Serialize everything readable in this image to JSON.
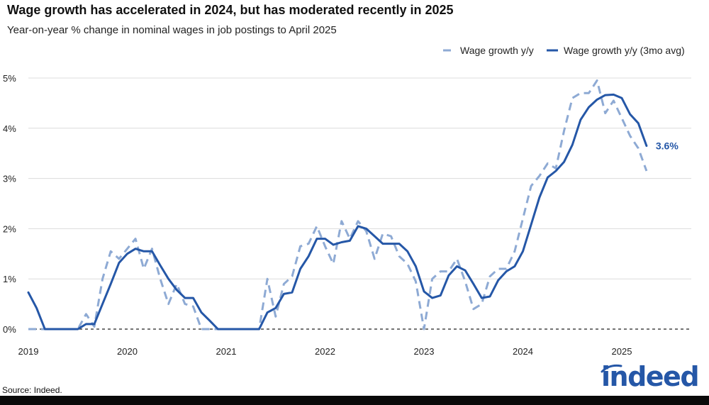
{
  "chart_data": {
    "type": "line",
    "title": "Wage growth has accelerated in 2024, but has moderated recently in 2025",
    "subtitle": "Year-on-year % change in nominal wages in job postings to April 2025",
    "xlabel": "",
    "ylabel": "",
    "ylim": [
      0,
      5
    ],
    "yticks": [
      0,
      1,
      2,
      3,
      4,
      5
    ],
    "ytick_labels": [
      "0%",
      "1%",
      "2%",
      "3%",
      "4%",
      "5%"
    ],
    "xlim": [
      2019.0,
      2025.75
    ],
    "xticks": [
      2019,
      2020,
      2021,
      2022,
      2023,
      2024,
      2025
    ],
    "xtick_labels": [
      "2019",
      "2020",
      "2021",
      "2022",
      "2023",
      "2024",
      "2025"
    ],
    "grid": true,
    "legend_position": "top-right",
    "end_label": "3.6%",
    "series": [
      {
        "name": "Wage growth y/y",
        "style": "dashed",
        "color": "#8eaad4",
        "x": [
          2019.0,
          2019.0833,
          2019.1667,
          2019.25,
          2019.3333,
          2019.4167,
          2019.5,
          2019.5833,
          2019.6667,
          2019.75,
          2019.8333,
          2019.9167,
          2020.0,
          2020.0833,
          2020.1667,
          2020.25,
          2020.3333,
          2020.4167,
          2020.5,
          2020.5833,
          2020.6667,
          2020.75,
          2020.8333,
          2020.9167,
          2021.0,
          2021.0833,
          2021.1667,
          2021.25,
          2021.3333,
          2021.4167,
          2021.5,
          2021.5833,
          2021.6667,
          2021.75,
          2021.8333,
          2021.9167,
          2022.0,
          2022.0833,
          2022.1667,
          2022.25,
          2022.3333,
          2022.4167,
          2022.5,
          2022.5833,
          2022.6667,
          2022.75,
          2022.8333,
          2022.9167,
          2023.0,
          2023.0833,
          2023.1667,
          2023.25,
          2023.3333,
          2023.4167,
          2023.5,
          2023.5833,
          2023.6667,
          2023.75,
          2023.8333,
          2023.9167,
          2024.0,
          2024.0833,
          2024.1667,
          2024.25,
          2024.3333,
          2024.4167,
          2024.5,
          2024.5833,
          2024.6667,
          2024.75,
          2024.8333,
          2024.9167,
          2025.0,
          2025.0833,
          2025.1667,
          2025.25
        ],
        "values": [
          0.0,
          0.0,
          0.0,
          0.0,
          0.0,
          0.0,
          0.0,
          0.3,
          0.05,
          1.0,
          1.55,
          1.4,
          1.6,
          1.8,
          1.2,
          1.6,
          1.0,
          0.5,
          0.9,
          0.5,
          0.45,
          0.0,
          0.0,
          0.0,
          0.0,
          0.0,
          0.0,
          0.0,
          0.0,
          1.0,
          0.25,
          0.9,
          1.05,
          1.65,
          1.7,
          2.05,
          1.65,
          1.3,
          2.15,
          1.8,
          2.15,
          1.95,
          1.4,
          1.9,
          1.85,
          1.45,
          1.3,
          0.95,
          0.0,
          1.0,
          1.15,
          1.15,
          1.4,
          0.95,
          0.4,
          0.5,
          1.05,
          1.2,
          1.2,
          1.55,
          2.2,
          2.85,
          3.05,
          3.3,
          3.2,
          3.95,
          4.6,
          4.7,
          4.7,
          4.95,
          4.3,
          4.55,
          4.2,
          3.85,
          3.6,
          3.15
        ]
      },
      {
        "name": "Wage growth y/y (3mo avg)",
        "style": "solid",
        "color": "#2557a7",
        "x": [
          2019.0,
          2019.0833,
          2019.1667,
          2019.25,
          2019.3333,
          2019.4167,
          2019.5,
          2019.5833,
          2019.6667,
          2019.75,
          2019.8333,
          2019.9167,
          2020.0,
          2020.0833,
          2020.1667,
          2020.25,
          2020.3333,
          2020.4167,
          2020.5,
          2020.5833,
          2020.6667,
          2020.75,
          2020.8333,
          2020.9167,
          2021.0,
          2021.0833,
          2021.1667,
          2021.25,
          2021.3333,
          2021.4167,
          2021.5,
          2021.5833,
          2021.6667,
          2021.75,
          2021.8333,
          2021.9167,
          2022.0,
          2022.0833,
          2022.1667,
          2022.25,
          2022.3333,
          2022.4167,
          2022.5,
          2022.5833,
          2022.6667,
          2022.75,
          2022.8333,
          2022.9167,
          2023.0,
          2023.0833,
          2023.1667,
          2023.25,
          2023.3333,
          2023.4167,
          2023.5,
          2023.5833,
          2023.6667,
          2023.75,
          2023.8333,
          2023.9167,
          2024.0,
          2024.0833,
          2024.1667,
          2024.25,
          2024.3333,
          2024.4167,
          2024.5,
          2024.5833,
          2024.6667,
          2024.75,
          2024.8333,
          2024.9167,
          2025.0,
          2025.0833,
          2025.1667,
          2025.25
        ],
        "values": [
          0.73,
          0.42,
          0.0,
          0.0,
          0.0,
          0.0,
          0.0,
          0.1,
          0.1,
          0.5,
          0.9,
          1.32,
          1.5,
          1.6,
          1.55,
          1.55,
          1.27,
          1.0,
          0.78,
          0.62,
          0.62,
          0.33,
          0.17,
          0.0,
          0.0,
          0.0,
          0.0,
          0.0,
          0.0,
          0.33,
          0.42,
          0.7,
          0.73,
          1.2,
          1.45,
          1.8,
          1.8,
          1.68,
          1.73,
          1.76,
          2.05,
          2.0,
          1.85,
          1.7,
          1.7,
          1.7,
          1.55,
          1.25,
          0.75,
          0.62,
          0.67,
          1.07,
          1.25,
          1.17,
          0.9,
          0.62,
          0.65,
          0.97,
          1.15,
          1.25,
          1.55,
          2.08,
          2.62,
          3.02,
          3.15,
          3.33,
          3.67,
          4.17,
          4.42,
          4.57,
          4.66,
          4.67,
          4.6,
          4.28,
          4.1,
          3.65
        ]
      }
    ]
  },
  "source": "Source: Indeed.",
  "logo_text": "indeed",
  "colors": {
    "solid": "#2557a7",
    "dashed": "#8eaad4",
    "grid": "#dcdcdc",
    "zero": "#222222"
  }
}
